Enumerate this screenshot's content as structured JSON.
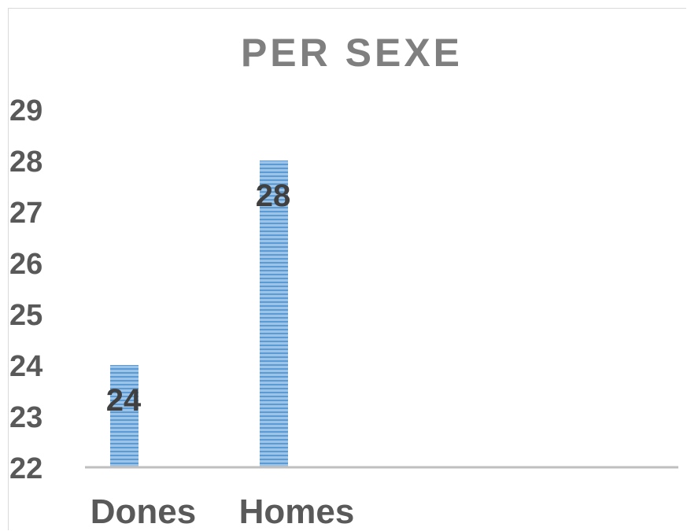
{
  "chart_data": {
    "type": "bar",
    "title": "PER SEXE",
    "categories": [
      "Dones",
      "Homes"
    ],
    "values": [
      24,
      28
    ],
    "data_labels": [
      "24",
      "28"
    ],
    "ylim": [
      22,
      29
    ],
    "yticks": [
      "22",
      "23",
      "24",
      "25",
      "26",
      "27",
      "28",
      "29"
    ],
    "grid": false,
    "legend": "none",
    "colors": {
      "bar_fill": "#9dc3e6",
      "bar_stripe": "#5b9bd5",
      "axis": "#bfbfbf",
      "title": "#7f7f7f",
      "tick": "#595959",
      "label": "#404040"
    }
  }
}
